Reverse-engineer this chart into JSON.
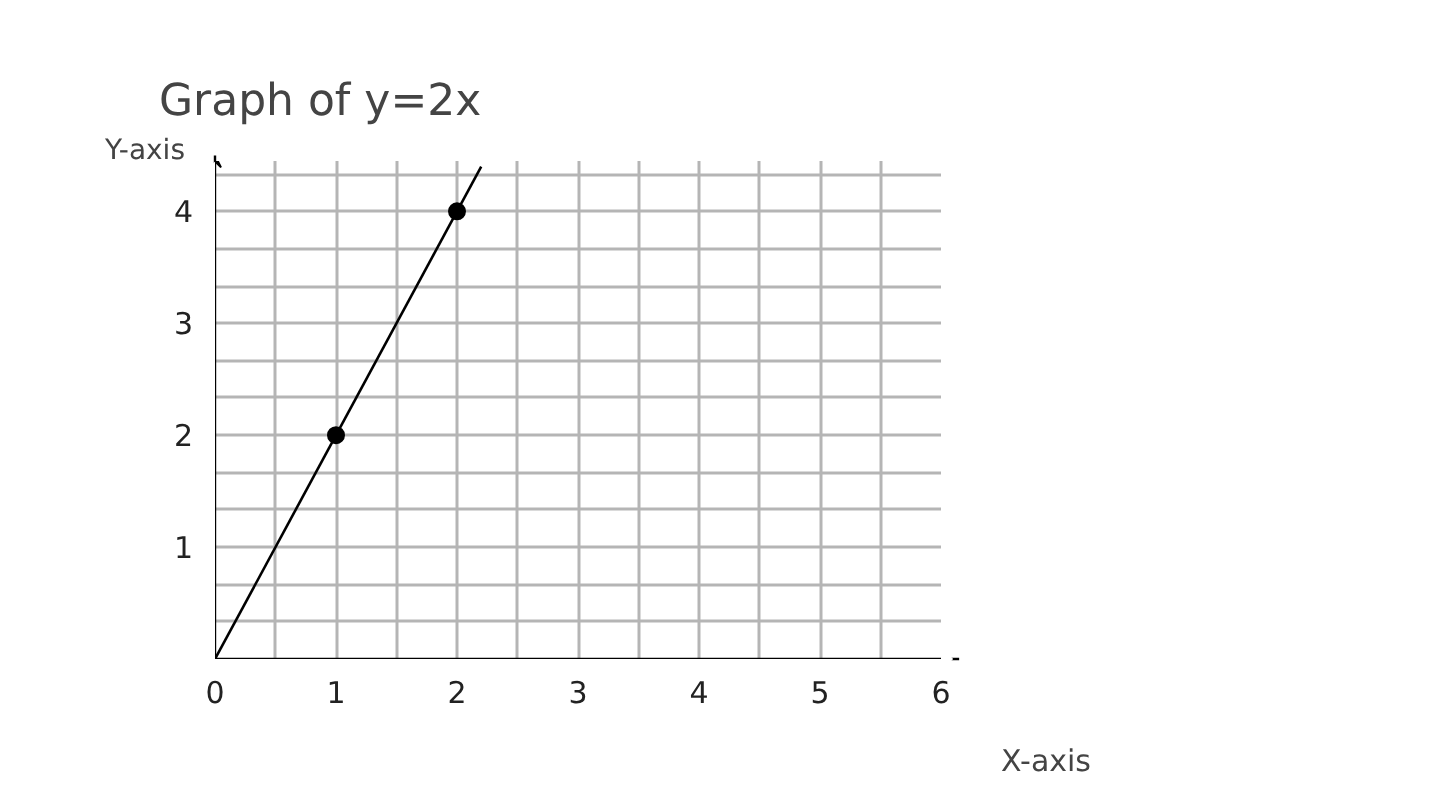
{
  "chart_data": {
    "type": "line",
    "title": "Graph of y=2x",
    "xlabel": "X-axis",
    "ylabel": "Y-axis",
    "xlim": [
      0,
      6
    ],
    "ylim": [
      0,
      4.45
    ],
    "xticks": [
      0,
      {
        "value": 0.5,
        "label": null
      },
      1,
      {
        "value": 1.5,
        "label": null
      },
      2,
      {
        "value": 2.5,
        "label": null
      },
      3,
      {
        "value": 3.5,
        "label": null
      },
      4,
      {
        "value": 4.5,
        "label": null
      },
      5,
      {
        "value": 5.5,
        "label": null
      },
      6
    ],
    "yticks": [
      {
        "value": 0.333,
        "label": null
      },
      {
        "value": 0.667,
        "label": null
      },
      1,
      {
        "value": 1.333,
        "label": null
      },
      {
        "value": 1.667,
        "label": null
      },
      2,
      {
        "value": 2.333,
        "label": null
      },
      {
        "value": 2.667,
        "label": null
      },
      3,
      {
        "value": 3.333,
        "label": null
      },
      {
        "value": 3.667,
        "label": null
      },
      4,
      {
        "value": 4.333,
        "label": null
      }
    ],
    "grid": true,
    "series": [
      {
        "type": "line",
        "color": "#000000",
        "x": [
          0,
          2.2
        ],
        "values": [
          0,
          4.4
        ],
        "marker": "none",
        "line_style": "solid"
      },
      {
        "type": "scatter",
        "color": "#000000",
        "x": [
          1,
          2
        ],
        "values": [
          2,
          4
        ],
        "marker": "circle"
      }
    ]
  }
}
